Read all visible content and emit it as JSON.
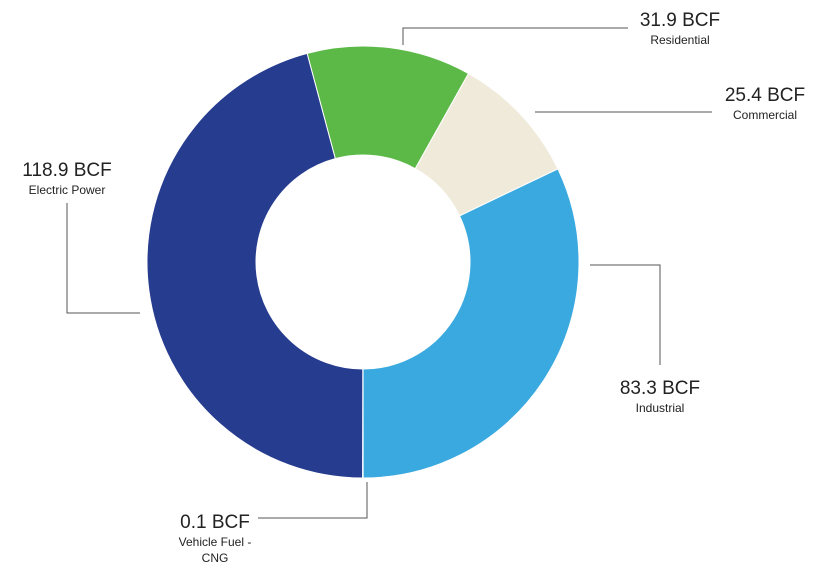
{
  "chart_data": {
    "type": "donut",
    "categories": [
      "Residential",
      "Commercial",
      "Industrial",
      "Vehicle Fuel - CNG",
      "Electric Power"
    ],
    "values": [
      31.9,
      25.4,
      83.3,
      0.1,
      118.9
    ],
    "value_labels": [
      "31.9 BCF",
      "25.4 BCF",
      "83.3 BCF",
      "0.1 BCF",
      "118.9 BCF"
    ],
    "colors": [
      "#5cb947",
      "#efeada",
      "#39a9df",
      "#8dc63f",
      "#263c8f"
    ]
  }
}
